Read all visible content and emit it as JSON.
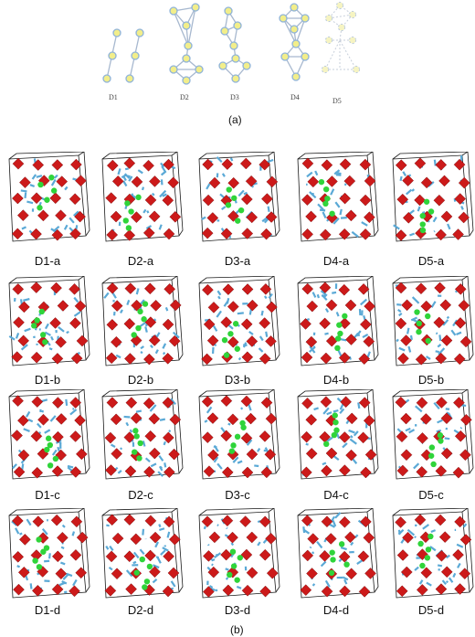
{
  "part_a": {
    "caption": "(a)",
    "labels": [
      "D1",
      "D2",
      "D3",
      "D4",
      "D5"
    ]
  },
  "part_b": {
    "caption": "(b)",
    "rows": [
      [
        "D1-a",
        "D2-a",
        "D3-a",
        "D4-a",
        "D5-a"
      ],
      [
        "D1-b",
        "D2-b",
        "D3-b",
        "D4-b",
        "D5-b"
      ],
      [
        "D1-c",
        "D2-c",
        "D3-c",
        "D4-c",
        "D5-c"
      ],
      [
        "D1-d",
        "D2-d",
        "D3-d",
        "D4-d",
        "D5-d"
      ]
    ]
  },
  "colors": {
    "node_fill": "#f2ee8a",
    "node_stroke": "#8fb3d9",
    "edge": "#a7b8cf",
    "oxygen": "#cc1a1a",
    "metal": "#5aa9d6",
    "dopant": "#2fd43a",
    "frame": "#1a1a1a"
  }
}
